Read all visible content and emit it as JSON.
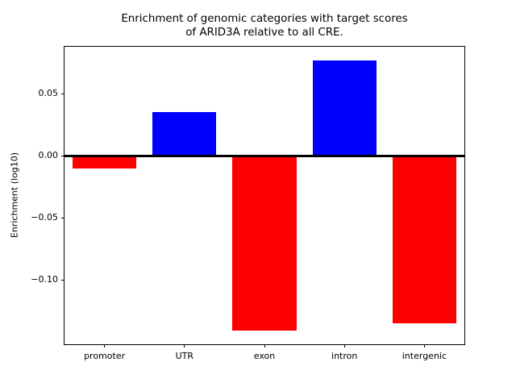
{
  "figure": {
    "kind": "matplotlib-style bar chart",
    "background_color": "#ffffff",
    "axes_color": "#000000"
  },
  "chart_data": {
    "type": "bar",
    "title": "Enrichment of genomic categories with target scores\nof ARID3A relative to all CRE.",
    "xlabel": "",
    "ylabel": "Enrichment (log10)",
    "categories": [
      "promoter",
      "UTR",
      "exon",
      "intron",
      "intergenic"
    ],
    "values": [
      -0.01,
      0.035,
      -0.141,
      0.077,
      -0.135
    ],
    "bar_colors": [
      "#ff0000",
      "#0000ff",
      "#ff0000",
      "#0000ff",
      "#ff0000"
    ],
    "positive_color": "#0000ff",
    "negative_color": "#ff0000",
    "ylim": [
      -0.152,
      0.088
    ],
    "yticks": {
      "values": [
        0.05,
        0.0,
        -0.05,
        -0.1
      ],
      "labels": [
        "0.05",
        "0.00",
        "−0.05",
        "−0.10"
      ]
    },
    "zero_line": true,
    "grid": false,
    "legend": false,
    "bar_width_fraction": 0.8
  }
}
